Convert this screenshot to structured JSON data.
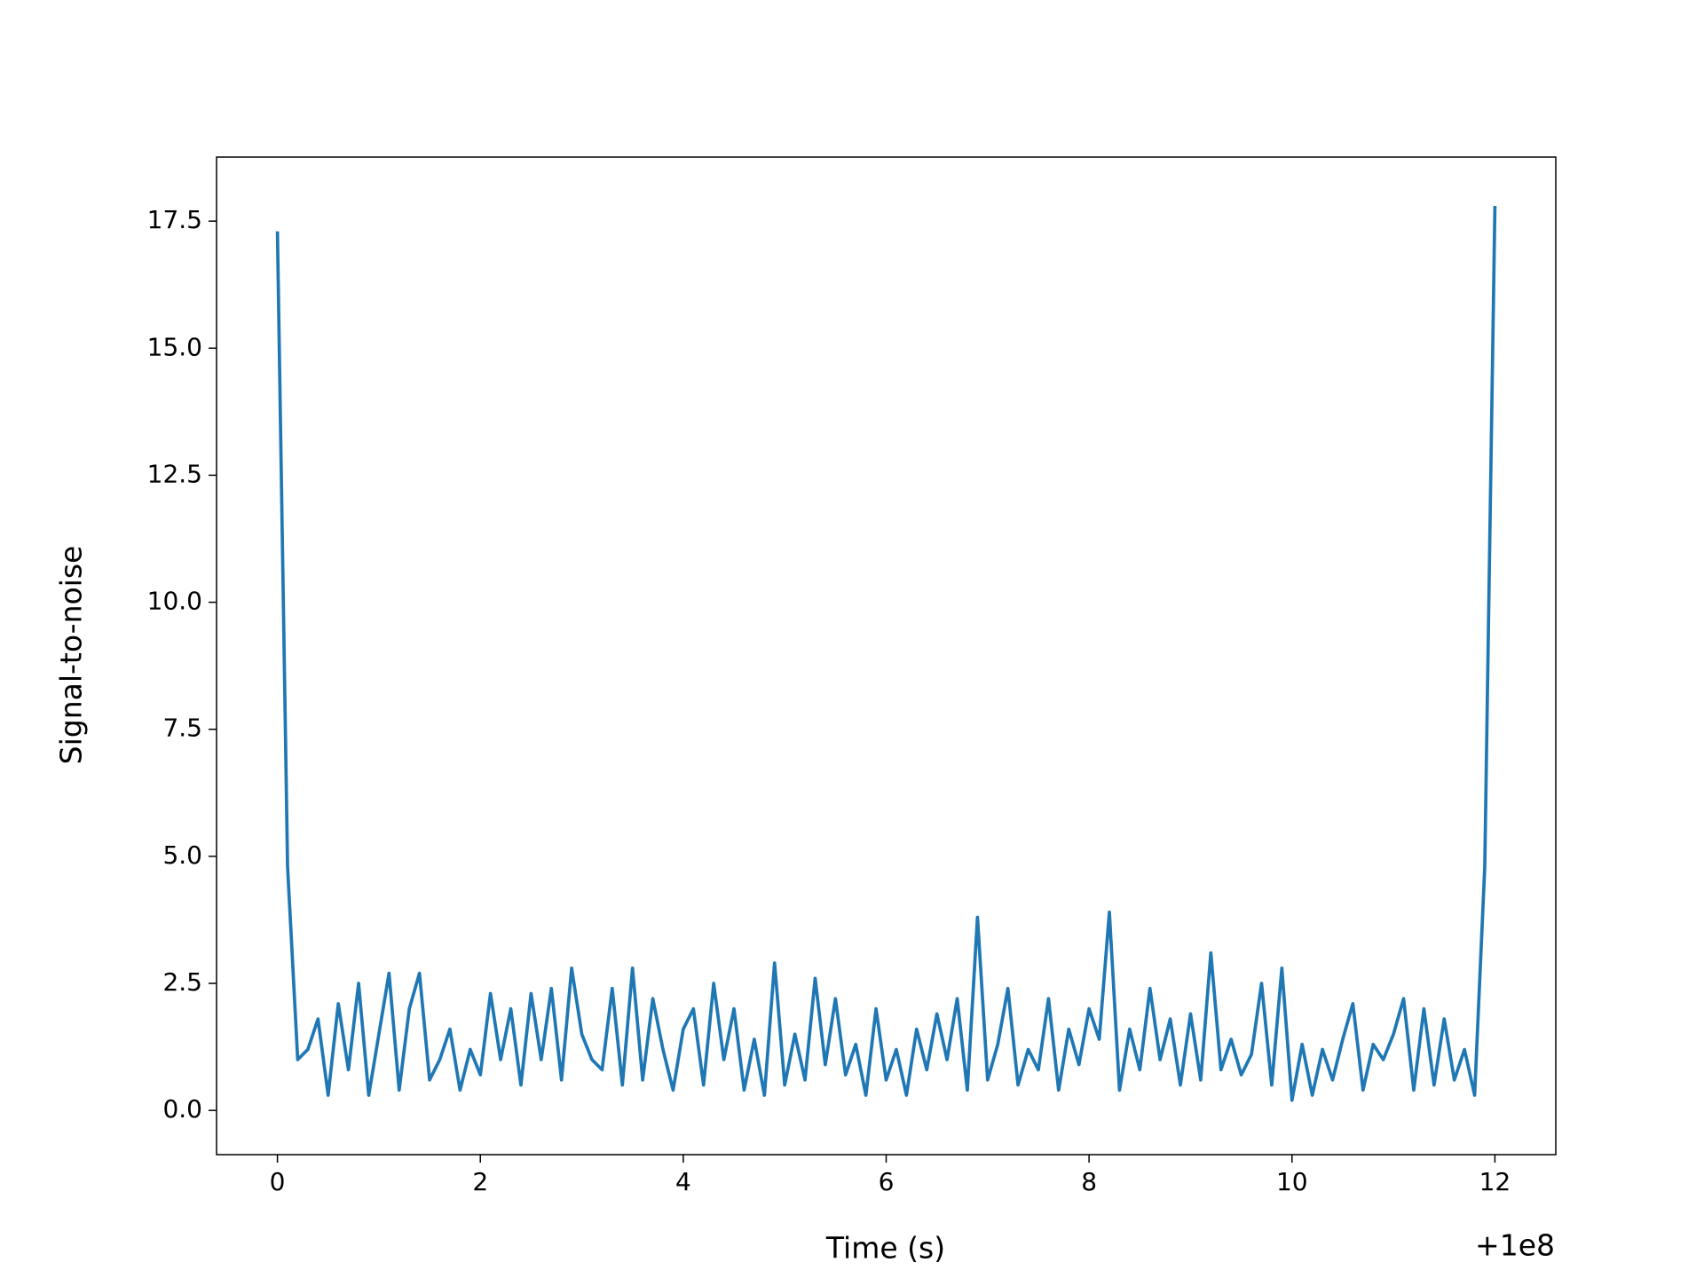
{
  "chart_data": {
    "type": "line",
    "xlabel": "Time (s)",
    "ylabel": "Signal-to-noise",
    "x_offset_label": "+1e8",
    "x": [
      0,
      0.1,
      0.2,
      0.3,
      0.4,
      0.5,
      0.6,
      0.7,
      0.8,
      0.9,
      1.0,
      1.1,
      1.2,
      1.3,
      1.4,
      1.5,
      1.6,
      1.7,
      1.8,
      1.9,
      2.0,
      2.1,
      2.2,
      2.3,
      2.4,
      2.5,
      2.6,
      2.7,
      2.8,
      2.9,
      3.0,
      3.1,
      3.2,
      3.3,
      3.4,
      3.5,
      3.6,
      3.7,
      3.8,
      3.9,
      4.0,
      4.1,
      4.2,
      4.3,
      4.4,
      4.5,
      4.6,
      4.7,
      4.8,
      4.9,
      5.0,
      5.1,
      5.2,
      5.3,
      5.4,
      5.5,
      5.6,
      5.7,
      5.8,
      5.9,
      6.0,
      6.1,
      6.2,
      6.3,
      6.4,
      6.5,
      6.6,
      6.7,
      6.8,
      6.9,
      7.0,
      7.1,
      7.2,
      7.3,
      7.4,
      7.5,
      7.6,
      7.7,
      7.8,
      7.9,
      8.0,
      8.1,
      8.2,
      8.3,
      8.4,
      8.5,
      8.6,
      8.7,
      8.8,
      8.9,
      9.0,
      9.1,
      9.2,
      9.3,
      9.4,
      9.5,
      9.6,
      9.7,
      9.8,
      9.9,
      10.0,
      10.1,
      10.2,
      10.3,
      10.4,
      10.5,
      10.6,
      10.7,
      10.8,
      10.9,
      11.0,
      11.1,
      11.2,
      11.3,
      11.4,
      11.5,
      11.6,
      11.7,
      11.8,
      11.9,
      12.0
    ],
    "series": [
      {
        "color": "#1f77b4",
        "values": [
          17.3,
          4.8,
          1.0,
          1.2,
          1.8,
          0.3,
          2.1,
          0.8,
          2.5,
          0.3,
          1.5,
          2.7,
          0.4,
          2.0,
          2.7,
          0.6,
          1.0,
          1.6,
          0.4,
          1.2,
          0.7,
          2.3,
          1.0,
          2.0,
          0.5,
          2.3,
          1.0,
          2.4,
          0.6,
          2.8,
          1.5,
          1.0,
          0.8,
          2.4,
          0.5,
          2.8,
          0.6,
          2.2,
          1.2,
          0.4,
          1.6,
          2.0,
          0.5,
          2.5,
          1.0,
          2.0,
          0.4,
          1.4,
          0.3,
          2.9,
          0.5,
          1.5,
          0.6,
          2.6,
          0.9,
          2.2,
          0.7,
          1.3,
          0.3,
          2.0,
          0.6,
          1.2,
          0.3,
          1.6,
          0.8,
          1.9,
          1.0,
          2.2,
          0.4,
          3.8,
          0.6,
          1.3,
          2.4,
          0.5,
          1.2,
          0.8,
          2.2,
          0.4,
          1.6,
          0.9,
          2.0,
          1.4,
          3.9,
          0.4,
          1.6,
          0.8,
          2.4,
          1.0,
          1.8,
          0.5,
          1.9,
          0.6,
          3.1,
          0.8,
          1.4,
          0.7,
          1.1,
          2.5,
          0.5,
          2.8,
          0.2,
          1.3,
          0.3,
          1.2,
          0.6,
          1.4,
          2.1,
          0.4,
          1.3,
          1.0,
          1.5,
          2.2,
          0.4,
          2.0,
          0.5,
          1.8,
          0.6,
          1.2,
          0.3,
          4.8,
          17.8
        ]
      }
    ],
    "xlim": [
      -0.6,
      12.6
    ],
    "xticks": [
      0,
      2,
      4,
      6,
      8,
      10,
      12
    ],
    "ylim": [
      -0.87,
      18.76
    ],
    "yticks": [
      {
        "value": 0,
        "label": "0.0"
      },
      2.5,
      {
        "value": 5,
        "label": "5.0"
      },
      7.5,
      {
        "value": 10,
        "label": "10.0"
      },
      12.5,
      {
        "value": 15,
        "label": "15.0"
      },
      17.5
    ]
  }
}
